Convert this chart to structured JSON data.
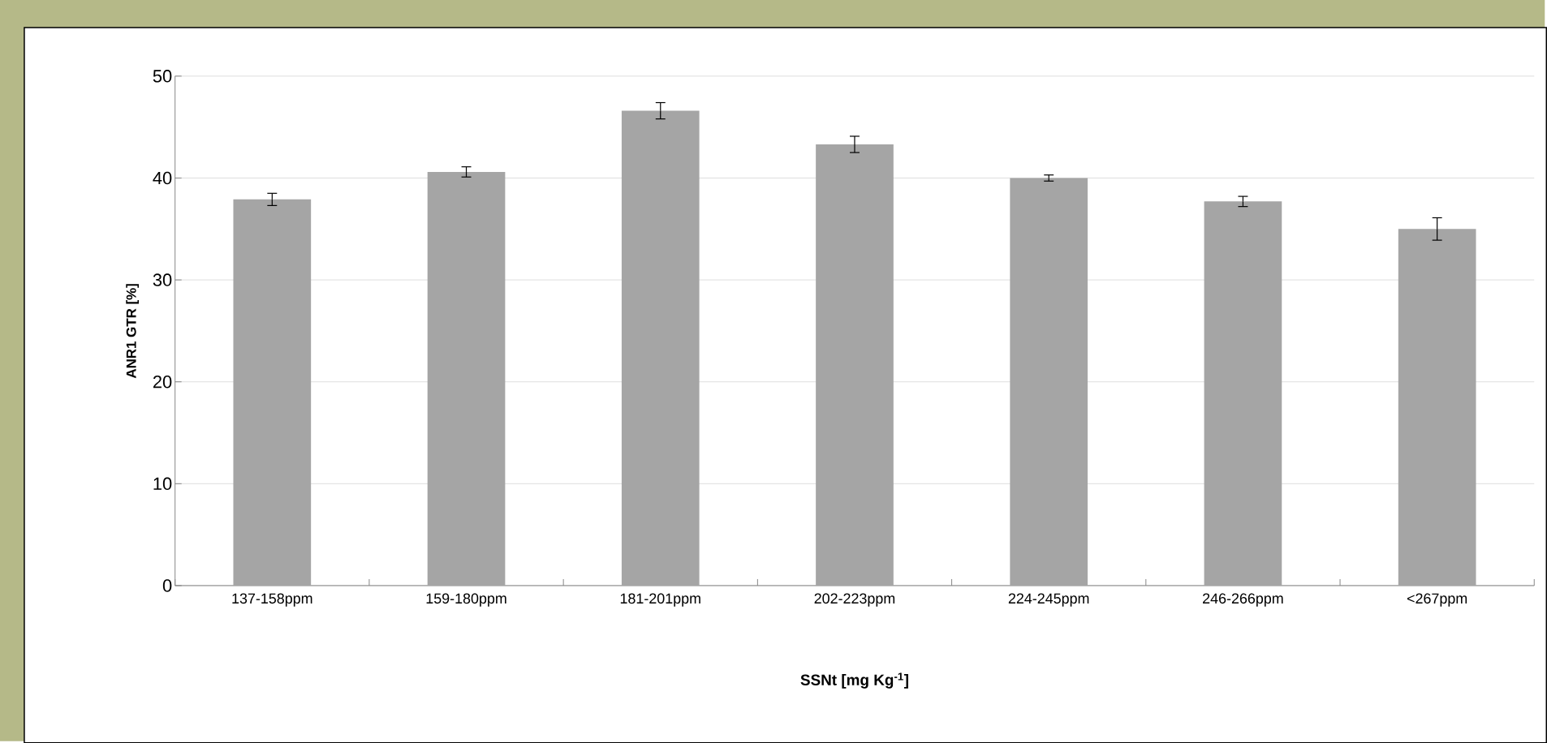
{
  "chart_data": {
    "type": "bar",
    "xlabel": "SSNt [mg Kg$^{-1}$]",
    "ylabel": "ANR1 GTR [%]",
    "categories": [
      "137-158ppm",
      "159-180ppm",
      "181-201ppm",
      "202-223ppm",
      "224-245ppm",
      "246-266ppm",
      "<267ppm"
    ],
    "values": [
      37.9,
      40.6,
      46.6,
      43.3,
      40.0,
      37.7,
      35.0
    ],
    "errors": [
      0.6,
      0.5,
      0.8,
      0.8,
      0.3,
      0.5,
      1.1
    ],
    "color": "#a5a5a5",
    "ylim": [
      0,
      50
    ],
    "yticks": [
      0,
      10,
      20,
      30,
      40,
      50
    ],
    "grid": "y"
  }
}
